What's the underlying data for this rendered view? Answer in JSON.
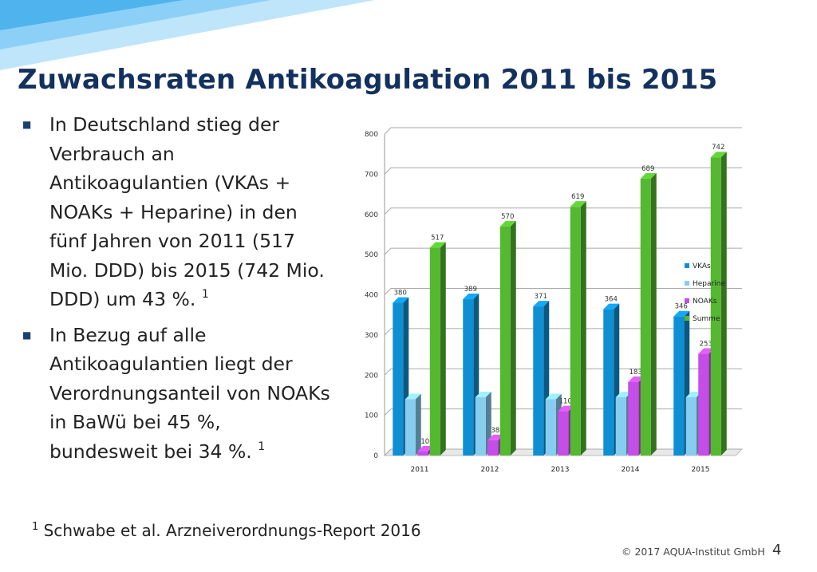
{
  "slide": {
    "title": "Zuwachsraten Antikoagulation 2011 bis 2015",
    "bullets": [
      {
        "text": "In Deutschland stieg der Verbrauch an Antikoagulantien (VKAs + NOAKs + Heparine) in den fünf Jahren von 2011 (517 Mio. DDD) bis 2015 (742 Mio. DDD) um 43 %. ",
        "sup": "1"
      },
      {
        "text": "In Bezug auf alle Antikoagulantien liegt der Verordnungsanteil von NOAKs in BaWü bei 45 %, bundesweit bei 34 %. ",
        "sup": "1"
      }
    ],
    "footnote_mark": "1",
    "footnote": " Schwabe et al. Arzneiverordnungs-Report  2016",
    "copyright": "© 2017 AQUA-Institut GmbH",
    "page_number": "4"
  },
  "colors": {
    "title": "#13315f",
    "accent_blue": "#4fa8e0",
    "light_blue": "#a8d8f5"
  },
  "chart_data": {
    "type": "bar",
    "categories": [
      "2011",
      "2012",
      "2013",
      "2014",
      "2015"
    ],
    "series": [
      {
        "name": "VKAs",
        "color": "#0f8fd3",
        "values": [
          380,
          389,
          371,
          364,
          346
        ],
        "labels": [
          "380",
          "389",
          "371",
          "364",
          "346"
        ]
      },
      {
        "name": "Heparine",
        "color": "#86cdf0",
        "values": [
          140,
          145,
          140,
          145,
          145
        ],
        "labels": [
          "",
          "",
          "",
          "",
          ""
        ]
      },
      {
        "name": "NOAKs",
        "color": "#c44ee6",
        "values": [
          10,
          38,
          110,
          183,
          253
        ],
        "labels": [
          "10",
          "38",
          "110",
          "183",
          "253"
        ]
      },
      {
        "name": "Summe",
        "color": "#54b830",
        "values": [
          517,
          570,
          619,
          689,
          742
        ],
        "labels": [
          "517",
          "570",
          "619",
          "689",
          "742"
        ]
      }
    ],
    "ylim": [
      0,
      800
    ],
    "yticks": [
      0,
      100,
      200,
      300,
      400,
      500,
      600,
      700,
      800
    ],
    "grid": true,
    "legend": "right",
    "style": "3d-columns"
  }
}
